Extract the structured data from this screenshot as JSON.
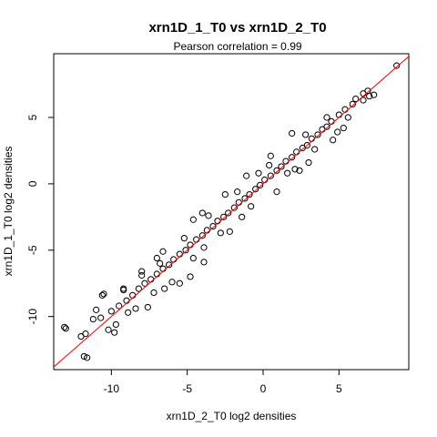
{
  "chart_data": {
    "type": "scatter",
    "title": "xrn1D_1_T0 vs xrn1D_2_T0",
    "subtitle": "Pearson correlation =  0.99",
    "xlabel": "xrn1D_2_T0 log2 densities",
    "ylabel": "xrn1D_1_T0 log2 densities",
    "xlim": [
      -13.8,
      9.6
    ],
    "ylim": [
      -14.0,
      9.8
    ],
    "x_ticks": [
      -10,
      -5,
      0,
      5
    ],
    "y_ticks": [
      -10,
      -5,
      0,
      5
    ],
    "x_tick_labels": [
      "-10",
      "-5",
      "0",
      "5"
    ],
    "y_tick_labels": [
      "-10",
      "-5",
      "0",
      "5"
    ],
    "grid": false,
    "colors": {
      "points": "#000000",
      "fit_line": "#ff0000"
    },
    "fit_line": {
      "intercept": 0,
      "slope": 1
    },
    "series": [
      {
        "points": [
          [
            8.8,
            8.9
          ],
          [
            7.3,
            6.7
          ],
          [
            6.9,
            7.0
          ],
          [
            6.6,
            6.8
          ],
          [
            6.1,
            6.4
          ],
          [
            5.9,
            6.0
          ],
          [
            5.4,
            5.6
          ],
          [
            5.0,
            5.2
          ],
          [
            5.6,
            5.0
          ],
          [
            4.5,
            4.7
          ],
          [
            4.2,
            4.3
          ],
          [
            3.9,
            4.1
          ],
          [
            3.6,
            3.7
          ],
          [
            3.2,
            3.4
          ],
          [
            2.9,
            2.9
          ],
          [
            2.6,
            2.7
          ],
          [
            2.2,
            2.4
          ],
          [
            1.9,
            2.0
          ],
          [
            1.5,
            1.7
          ],
          [
            1.2,
            1.3
          ],
          [
            0.9,
            1.0
          ],
          [
            0.5,
            0.6
          ],
          [
            0.1,
            0.3
          ],
          [
            -0.2,
            -0.1
          ],
          [
            -0.5,
            -0.4
          ],
          [
            -0.9,
            -0.8
          ],
          [
            -1.2,
            -1.1
          ],
          [
            -1.6,
            -1.4
          ],
          [
            -1.9,
            -1.8
          ],
          [
            -2.3,
            -2.2
          ],
          [
            -2.6,
            -2.5
          ],
          [
            -3.0,
            -2.8
          ],
          [
            -3.3,
            -3.2
          ],
          [
            -3.7,
            -3.5
          ],
          [
            -4.0,
            -3.9
          ],
          [
            -4.4,
            -4.2
          ],
          [
            -4.8,
            -4.6
          ],
          [
            -5.1,
            -5.0
          ],
          [
            -5.5,
            -5.3
          ],
          [
            -5.9,
            -5.7
          ],
          [
            -6.2,
            -6.1
          ],
          [
            -6.6,
            -6.4
          ],
          [
            -7.0,
            -6.8
          ],
          [
            -7.4,
            -7.2
          ],
          [
            -7.8,
            -7.5
          ],
          [
            -8.2,
            -7.9
          ],
          [
            -8.6,
            -8.4
          ],
          [
            -9.0,
            -8.8
          ],
          [
            -9.5,
            -9.2
          ],
          [
            -10.0,
            -9.6
          ],
          [
            3.4,
            2.6
          ],
          [
            2.8,
            3.7
          ],
          [
            1.6,
            0.8
          ],
          [
            0.4,
            1.4
          ],
          [
            -0.8,
            -1.7
          ],
          [
            -1.7,
            -0.6
          ],
          [
            -2.8,
            -3.7
          ],
          [
            -3.6,
            -2.4
          ],
          [
            -4.6,
            -5.6
          ],
          [
            -5.2,
            -4.1
          ],
          [
            4.2,
            5.0
          ],
          [
            4.9,
            3.9
          ],
          [
            2.1,
            1.1
          ],
          [
            -0.3,
            0.8
          ],
          [
            -3.9,
            -4.8
          ],
          [
            -6.8,
            -6.0
          ],
          [
            -7.2,
            -8.2
          ],
          [
            -8.0,
            -6.9
          ],
          [
            -8.4,
            -9.4
          ],
          [
            -9.2,
            -8.0
          ],
          [
            -10.5,
            -8.3
          ],
          [
            -10.2,
            -11.0
          ],
          [
            -9.7,
            -10.6
          ],
          [
            -11.0,
            -9.5
          ],
          [
            -11.7,
            -11.3
          ],
          [
            -11.6,
            -13.1
          ],
          [
            -11.8,
            -13.0
          ],
          [
            -13.1,
            -10.8
          ],
          [
            -11.2,
            -10.2
          ],
          [
            -10.7,
            -10.1
          ],
          [
            -9.8,
            -11.2
          ],
          [
            -8.9,
            -9.7
          ],
          [
            -7.6,
            -9.3
          ],
          [
            -6.5,
            -7.9
          ],
          [
            -6.0,
            -7.4
          ],
          [
            -4.8,
            -7.0
          ],
          [
            -5.5,
            -7.5
          ],
          [
            -3.9,
            -5.9
          ],
          [
            -2.2,
            -3.6
          ],
          [
            -1.4,
            -2.5
          ],
          [
            0.9,
            -0.6
          ],
          [
            2.4,
            1.0
          ],
          [
            3.0,
            1.6
          ],
          [
            4.6,
            3.3
          ],
          [
            5.3,
            4.2
          ],
          [
            6.6,
            6.3
          ],
          [
            7.0,
            6.6
          ],
          [
            1.9,
            3.8
          ],
          [
            0.5,
            2.1
          ],
          [
            -1.1,
            0.6
          ],
          [
            -2.5,
            -0.8
          ],
          [
            -4.0,
            -2.2
          ],
          [
            -4.6,
            -2.7
          ],
          [
            -6.6,
            -5.1
          ],
          [
            -7.0,
            -5.6
          ],
          [
            -8.0,
            -6.6
          ],
          [
            -9.2,
            -7.9
          ],
          [
            -12.0,
            -11.5
          ],
          [
            -13.0,
            -10.9
          ],
          [
            -10.6,
            -8.4
          ]
        ]
      }
    ]
  }
}
